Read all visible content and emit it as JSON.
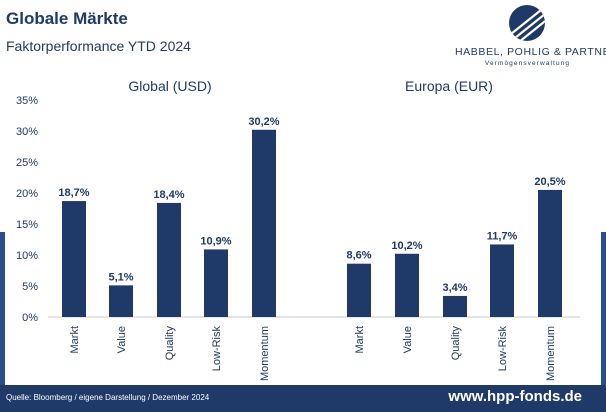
{
  "header": {
    "title": "Globale Märkte",
    "subtitle": "Faktorperformance YTD 2024"
  },
  "logo": {
    "icon": "hpp-logo-emblem",
    "name": "HABBEL, POHLIG & PARTNER",
    "tagline": "Vermögensverwaltung"
  },
  "footer": {
    "source": "Quelle: Bloomberg / eigene Darstellung / Dezember 2024",
    "url": "www.hpp-fonds.de"
  },
  "colors": {
    "bar": "#1f3a68",
    "text": "#1f3a68",
    "band": "#1f3a68",
    "accent": "#2b4f8e"
  },
  "chart_data": {
    "type": "bar",
    "ylim": [
      0,
      35
    ],
    "yticks": [
      "0%",
      "5%",
      "10%",
      "15%",
      "20%",
      "25%",
      "30%",
      "35%"
    ],
    "ytick_values": [
      0,
      5,
      10,
      15,
      20,
      25,
      30,
      35
    ],
    "groups": [
      {
        "title": "Global (USD)",
        "categories": [
          "Markt",
          "Value",
          "Quality",
          "Low-Risk",
          "Momentum"
        ],
        "values": [
          18.7,
          5.1,
          18.4,
          10.9,
          30.2
        ],
        "labels": [
          "18,7%",
          "5,1%",
          "18,4%",
          "10,9%",
          "30,2%"
        ]
      },
      {
        "title": "Europa (EUR)",
        "categories": [
          "Markt",
          "Value",
          "Quality",
          "Low-Risk",
          "Momentum"
        ],
        "values": [
          8.6,
          10.2,
          3.4,
          11.7,
          20.5
        ],
        "labels": [
          "8,6%",
          "10,2%",
          "3,4%",
          "11,7%",
          "20,5%"
        ]
      }
    ]
  }
}
